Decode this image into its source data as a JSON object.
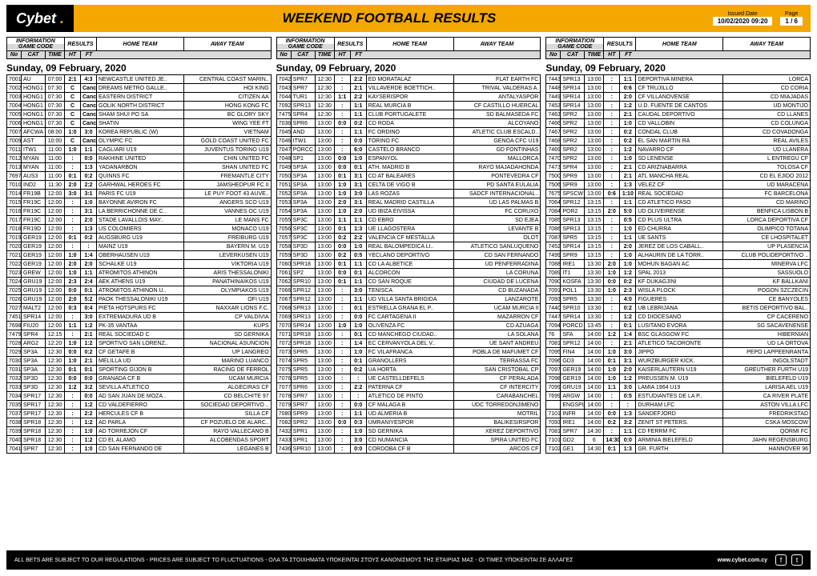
{
  "header": {
    "brand": "Cybet",
    "title": "WEEKEND FOOTBALL RESULTS",
    "issued_label": "Issued Date",
    "issued_value": "10/02/2020 09:20",
    "page_label": "Page",
    "page_value": "1 / 6"
  },
  "colhead": {
    "information": "INFORMATION",
    "gamecode": "GAME CODE",
    "results": "RESULTS",
    "home": "HOME TEAM",
    "away": "AWAY TEAM",
    "no": "No",
    "cat": "CAT",
    "time": "TIME",
    "ht": "HT",
    "ft": "FT"
  },
  "date": "Sunday, 09 February, 2020",
  "footer": {
    "disclaimer": "ALL BETS ARE SUBJECT TO OUR REGULATIONS - PRICES ARE SUBJECT TO FLUCTUATIONS - ΟΛΑ ΤΑ ΣΤΟΙΧΗΜΑΤΑ ΥΠΟΚΕΙΝΤΑΙ ΣΤΟΥΣ ΚΑΝΟΝΙΣΜΟΥΣ ΤΗΣ ΕΤΑΙΡΙΑΣ ΜΑΣ - ΟΙ ΤΙΜΕΣ ΥΠΟΚΕΙΝΤΑΙ ΣΕ ΑΛΛΑΓΕΣ",
    "url": "www.cybet.com.cy"
  },
  "columns": [
    [
      [
        "7001",
        "AU",
        "07:00",
        "2:1",
        "4:3",
        "NEWCASTLE UNITED JE..",
        "CENTRAL COAST MARIN.."
      ],
      [
        "7002",
        "HONG1",
        "07:30",
        "C",
        "Canc",
        "DREAMS METRO GALLE..",
        "HOI KING"
      ],
      [
        "7003",
        "HONG1",
        "07:30",
        "C",
        "Canc",
        "EASTERN DISTRICT",
        "CITIZEN AA"
      ],
      [
        "7004",
        "HONG1",
        "07:30",
        "C",
        "Canc",
        "GOLIK NORTH DISTRICT",
        "HONG KONG FC"
      ],
      [
        "7005",
        "HONG1",
        "07:30",
        "C",
        "Canc",
        "SHAM SHUI PO SA",
        "BC GLORY SKY"
      ],
      [
        "7006",
        "HONG1",
        "07:30",
        "C",
        "Canc",
        "SHATIN",
        "WING YEE FT"
      ],
      [
        "7007",
        "AFCWA",
        "08:00",
        "1:0",
        "3:0",
        "KOREA REPUBLIC (W)",
        "VIETNAM"
      ],
      [
        "7009",
        "AST",
        "10:00",
        "C",
        "Canc",
        "OLYMPIC FC",
        "GOLD COAST UNITED FC"
      ],
      [
        "7011",
        "ITW1",
        "11:00",
        "1:0",
        "1:1",
        "CAGLIARI U19",
        "JUVENTUS TORINO U19"
      ],
      [
        "7012",
        "MYAN",
        "11:00",
        ":",
        "0:0",
        "RAKHINE UNITED",
        "CHIN UNITED FC"
      ],
      [
        "7013",
        "MYAN",
        "11:00",
        ":",
        "1:3",
        "YADANARBON",
        "SHAN UNITED FC"
      ],
      [
        "7697",
        "AUS3",
        "11:00",
        "0:1",
        "0:2",
        "QUINNS FC",
        "FREMANTLE CITY"
      ],
      [
        "7010",
        "IND2",
        "11:30",
        "2:0",
        "2:2",
        "GARHWAL HEROES FC",
        "JAMSHEDPUR FC II"
      ],
      [
        "7014",
        "FR19B",
        "12:00",
        "3:0",
        "3:1",
        "PARIS FC U19",
        "LE PUY FOOT 43 AUVE.."
      ],
      [
        "7015",
        "FR19C",
        "12:00",
        ":",
        "1:0",
        "BAYONNE AVIRON FC",
        "ANGERS SCO U19"
      ],
      [
        "7016",
        "FR19C",
        "12:00",
        ":",
        "3:1",
        "LA BERRICHONNE DE C..",
        "VANNES OC U19"
      ],
      [
        "7017",
        "FR19C",
        "12:00",
        ":",
        "2:0",
        "STADE LAVALLOIS MAY..",
        "LE MANS FC"
      ],
      [
        "7018",
        "FR19D",
        "12:00",
        ":",
        "1:3",
        "US COLOMIERS",
        "MONACO U19"
      ],
      [
        "7019",
        "GER19",
        "12:00",
        "0:1",
        "0:2",
        "AUGSBURG U19",
        "FREIBURG U19"
      ],
      [
        "7020",
        "GER19",
        "12:00",
        ":",
        ":",
        "MAINZ U19",
        "BAYERN M. U19"
      ],
      [
        "7021",
        "GER19",
        "12:00",
        "1:0",
        "1:4",
        "OBERHAUSEN U19",
        "LEVERKUSEN U19"
      ],
      [
        "7022",
        "GER19",
        "12:00",
        "2:0",
        "2:0",
        "SCHALKE U19",
        "VIKTORIA U19"
      ],
      [
        "7023",
        "GREW",
        "12:00",
        "1:0",
        "1:1",
        "ATROMITOS ATHINON",
        "ARIS THESSALONIKI"
      ],
      [
        "7024",
        "GRU19",
        "12:00",
        "2:3",
        "2:4",
        "AEK ATHENS U19",
        "PANATHINAIKOS U19"
      ],
      [
        "7025",
        "GRU19",
        "12:00",
        "0:0",
        "0:1",
        "ATROMITOS ATHINON U..",
        "OLYMPIAKOS U19"
      ],
      [
        "7026",
        "GRU19",
        "12:00",
        "2:0",
        "5:2",
        "PAOK THESSALONIKI U19",
        "OFI U19"
      ],
      [
        "7027",
        "MALT2",
        "12:00",
        "0:3",
        "0:4",
        "PIETA HOTSPURS FC",
        "NAXXAR LIONS F.C."
      ],
      [
        "7451",
        "SPR14",
        "12:00",
        ":",
        "3:0",
        "EXTREMADURA UD B",
        "CP VALDIVIA"
      ],
      [
        "7698",
        "FIU20",
        "12:00",
        "1:1",
        "1:2",
        "PK-35 VANTAA",
        "KUPS"
      ],
      [
        "7479",
        "SPR4",
        "12:15",
        ":",
        "2:1",
        "REAL SOCIEDAD C",
        "SD GERNIKA"
      ],
      [
        "7028",
        "ARG2",
        "12:20",
        "1:0",
        "1:2",
        "SPORTIVO SAN LORENZ..",
        "NACIONAL ASUNCION"
      ],
      [
        "7029",
        "SP3A",
        "12:30",
        "0:0",
        "0:2",
        "CF GETAFE B",
        "UP LANGREO"
      ],
      [
        "7030",
        "SP3A",
        "12:30",
        "1:0",
        "2:1",
        "MELILLA UD",
        "MARINO LUANCO"
      ],
      [
        "7031",
        "SP3A",
        "12:30",
        "0:1",
        "0:1",
        "SPORTING GIJON B",
        "RACING DE FERROL"
      ],
      [
        "7032",
        "SP3D",
        "12:30",
        "0:0",
        "0:0",
        "GRANADA CF B",
        "UCAM MURCIA"
      ],
      [
        "7033",
        "SP3D",
        "12:30",
        "1:2",
        "3:2",
        "SEVILLA ATLETICO",
        "ALGECIRAS CF"
      ],
      [
        "7034",
        "SPR17",
        "12:30",
        ":",
        "0:0",
        "AD SAN JUAN DE MOZA..",
        "CD BELCHITE 97"
      ],
      [
        "7035",
        "SPR17",
        "12:30",
        ":",
        "1:2",
        "CD VALDEFIERRO",
        "SOCIEDAD DEPORTIVO .."
      ],
      [
        "7037",
        "SPR17",
        "12:30",
        ":",
        "2:2",
        "HERCULES CF B",
        "SILLA CF"
      ],
      [
        "7038",
        "SPR18",
        "12:30",
        ":",
        "1:2",
        "AD PARLA",
        "CF POZUELO DE ALARC.."
      ],
      [
        "7039",
        "SPR18",
        "12:30",
        ":",
        "1:0",
        "AD TORREJON CF",
        "RAYO VALLECANO B"
      ],
      [
        "7040",
        "SPR18",
        "12:30",
        ":",
        "1:2",
        "CD EL ALAMO",
        "ALCOBENDAS SPORT"
      ],
      [
        "7041",
        "SPR7",
        "12:30",
        ":",
        "1:0",
        "CD SAN FERNANDO DE",
        "LEGANES B"
      ]
    ],
    [
      [
        "7042",
        "SPR7",
        "12:30",
        ":",
        "2:2",
        "ED MORATALAZ",
        "FLAT EARTH FC"
      ],
      [
        "7043",
        "SPR7",
        "12:30",
        ":",
        "2:1",
        "VILLAVERDE BOETTICH..",
        "TRIVAL VALDERAS A."
      ],
      [
        "7044",
        "TUR1",
        "12:30",
        "1:1",
        "2:2",
        "KAYSERISPOR",
        "ANTALYASPOR"
      ],
      [
        "7092",
        "SPR13",
        "12:30",
        ":",
        "1:1",
        "REAL MURCIA B",
        "CF CASTILLO HUERCAL"
      ],
      [
        "7475",
        "SPR4",
        "12:30",
        ":",
        "1:1",
        "CLUB PORTUGALETE",
        "SD BALMASEDA FC"
      ],
      [
        "7036",
        "SPR6",
        "13:00",
        "0:0",
        "0:2",
        "CD RODA",
        "ALCOYANO"
      ],
      [
        "7045",
        "AND",
        "13:00",
        ":",
        "1:1",
        "FC ORDINO",
        "ATLETIC CLUB ESCALD.."
      ],
      [
        "7046",
        "ITW1",
        "13:00",
        ":",
        "0:0",
        "TORINO FC",
        "GENOA CFC U19"
      ],
      [
        "7047",
        "PORCC",
        "13:00",
        ":",
        "6:0",
        "CASTELO BRANCO",
        "GD FONTINHAS"
      ],
      [
        "7048",
        "SP1",
        "13:00",
        "0:0",
        "1:0",
        "ESPANYOL",
        "MALLORCA"
      ],
      [
        "7049",
        "SP3A",
        "13:00",
        "0:0",
        "0:1",
        "ATH. MADRID B",
        "RAYO MAJADAHONDA"
      ],
      [
        "7050",
        "SP3A",
        "13:00",
        "0:1",
        "3:1",
        "CD AT BALEARES",
        "PONTEVEDRA CF"
      ],
      [
        "7051",
        "SP3A",
        "13:00",
        "1:0",
        "3:1",
        "CELTA DE VIGO B",
        "PD SANTA EULALIA"
      ],
      [
        "7052",
        "SP3A",
        "13:00",
        "1:0",
        "3:0",
        "LAS ROZAS",
        "SADCF INTERNACIONAL.."
      ],
      [
        "7053",
        "SP3A",
        "13:00",
        "2:0",
        "3:1",
        "REAL MADRID CASTILLA",
        "UD LAS PALMAS B"
      ],
      [
        "7054",
        "SP3A",
        "13:00",
        "1:0",
        "2:0",
        "UD IBIZA EIVISSA",
        "FC CORUXO"
      ],
      [
        "7055",
        "SP3C",
        "13:00",
        "1:1",
        "1:1",
        "CD EBRO",
        "SD EJEA"
      ],
      [
        "7056",
        "SP3C",
        "13:00",
        "0:1",
        "1:3",
        "UE LLAGOSTERA",
        "LEVANTE B"
      ],
      [
        "7057",
        "SP3C",
        "13:00",
        "0:2",
        "2:2",
        "VALENCIA CF MESTALLA",
        "OLOT"
      ],
      [
        "7058",
        "SP3D",
        "13:00",
        "0:0",
        "1:0",
        "REAL BALOMPEDICA LI..",
        "ATLETICO SANLUQUENO"
      ],
      [
        "7059",
        "SP3D",
        "13:00",
        "0:2",
        "0:5",
        "YECLANO DEPORTIVO",
        "CD SAN FERNANDO"
      ],
      [
        "7060",
        "SPR18",
        "13:00",
        "0:1",
        "1:1",
        "CD LA ALBETICE",
        "UD PENFERRADINA"
      ],
      [
        "7061",
        "SP2",
        "13:00",
        "0:0",
        "0:1",
        "ALCORCON",
        "LA CORUNA"
      ],
      [
        "7062",
        "SPR10",
        "13:00",
        "0:1",
        "1:1",
        "CD SAN ROQUE",
        "CIUDAD DE LUCENA"
      ],
      [
        "7066",
        "SPR12",
        "13:00",
        ":",
        "3:0",
        "TENISCA",
        "CD BUZANADA"
      ],
      [
        "7067",
        "SPR12",
        "13:00",
        ":",
        "1:1",
        "UD VILLA SANTA BRIGIDA",
        "LANZAROTE"
      ],
      [
        "7068",
        "SPR13",
        "13:00",
        ":",
        "0:1",
        "ESTRELLA GRANA EL P..",
        "UCAM MURCIA II"
      ],
      [
        "7069",
        "SPR13",
        "13:00",
        ":",
        "0:0",
        "FC CARTAGENA II",
        "MAZARRON CF"
      ],
      [
        "7070",
        "SPR14",
        "13:00",
        "1:0",
        "1:0",
        "OLIVENZA FC",
        "CD AZUAGA"
      ],
      [
        "7071",
        "SPR18",
        "13:00",
        ":",
        "0:1",
        "CD MANCHEGO CIUDAD..",
        "LA SOLANA"
      ],
      [
        "7072",
        "SPR18",
        "13:00",
        ":",
        "1:4",
        "EC CERVANYOLA DEL V..",
        "UE SANT ANDREU"
      ],
      [
        "7073",
        "SPR5",
        "13:00",
        ":",
        "1:0",
        "FC VILAFRANCA",
        "POBLA DE MAFUMET CF"
      ],
      [
        "7074",
        "SPR5",
        "13:00",
        ":",
        "0:1",
        "GRANOLLERS",
        "TERRASSA FC"
      ],
      [
        "7075",
        "SPR5",
        "13:00",
        ":",
        "0:2",
        "UA HORTA",
        "SAN CRISTOBAL CP"
      ],
      [
        "7076",
        "SPR5",
        "13:00",
        ":",
        ":",
        "UE CASTELLDEFELS",
        "CF PERALADA"
      ],
      [
        "7077",
        "SPR6",
        "13:00",
        ":",
        "2:2",
        "PATERNA CF",
        "CF INTERCITY"
      ],
      [
        "7078",
        "SPR7",
        "13:00",
        ":",
        ":",
        "ATLETICO DE PINTO",
        "CARABANCHEL"
      ],
      [
        "7079",
        "SPR7",
        "13:00",
        ":",
        "0:0",
        "CF MALAGA B",
        "UDC TORREDONJIMENO"
      ],
      [
        "7080",
        "SPR9",
        "13:00",
        ":",
        "1:1",
        "UD ALMERIA B",
        "MOTRIL"
      ],
      [
        "7082",
        "SPR2",
        "13:00",
        "0:0",
        "0:3",
        "UMRANIYESPOR",
        "BALIKESIRSPOR"
      ],
      [
        "7432",
        "SPR1",
        "13:00",
        ":",
        "1:0",
        "SD GERNIKA",
        "XEREZ DEPORTIVO"
      ],
      [
        "7433",
        "SPR1",
        "13:00",
        ":",
        "3:0",
        "CD NUMANCIA",
        "SPIRA UNITED FC"
      ],
      [
        "7436",
        "SPR10",
        "13:00",
        ":",
        "0:0",
        "CORDOBA CF B",
        "ARCOS CF"
      ]
    ],
    [
      [
        "7443",
        "SPR13",
        "13:00",
        ":",
        "1:1",
        "DEPORTIVA MINERA",
        "LORCA"
      ],
      [
        "7448",
        "SPR14",
        "13:00",
        ":",
        "0:6",
        "CF TRUJILLO",
        "CD CORIA"
      ],
      [
        "7449",
        "SPR14",
        "13:00",
        ":",
        "2:0",
        "CF VILLANOVENSE",
        "CD MIAJADAS"
      ],
      [
        "7453",
        "SPR14",
        "13:00",
        ":",
        "1:2",
        "U.D. FUENTE DE CANTOS",
        "UD MONTIJO"
      ],
      [
        "7463",
        "SPR2",
        "13:00",
        ":",
        "2:1",
        "CAUDAL DEPORTIVO",
        "CD LLANES"
      ],
      [
        "7466",
        "SPR2",
        "13:00",
        ":",
        "1:0",
        "CD VALLOBIN",
        "CD COLUNGA"
      ],
      [
        "7467",
        "SPR2",
        "13:00",
        ":",
        "0:2",
        "CONDAL CLUB",
        "CD COVADONGA"
      ],
      [
        "7468",
        "SPR2",
        "13:00",
        ":",
        "0:2",
        "EL SAN MARTIN RA",
        "REAL AVILES"
      ],
      [
        "7469",
        "SPR2",
        "13:00",
        ":",
        "1:2",
        "NAVARRO CF",
        "UD LLANERA"
      ],
      [
        "7470",
        "SPR2",
        "13:00",
        ":",
        "1:0",
        "SD LENENSE",
        "L ENTREGU CF"
      ],
      [
        "7473",
        "SPR4",
        "13:00",
        ":",
        "2:1",
        "CD ARIZNABARRA",
        "TOLOSA CF"
      ],
      [
        "7500",
        "SPR9",
        "13:00",
        ":",
        "2:1",
        "ATL MANCHA REAL",
        "CD EL EJIDO 2012"
      ],
      [
        "7506",
        "SPR9",
        "13:00",
        ":",
        "1:3",
        "VELEZ CF",
        "UD MARACENA"
      ],
      [
        "7675",
        "SPSCW",
        "13:00",
        "0:6",
        "1:10",
        "REAL SOCIEDAD",
        "FC BARCELONA"
      ],
      [
        "7064",
        "SPR12",
        "13:15",
        ":",
        "1:1",
        "CD ATLETICO PASO",
        "CD MARINO"
      ],
      [
        "7084",
        "POR2",
        "13:15",
        "2:0",
        "5:0",
        "UD OLIVEIRENSE",
        "BENFICA LISBON B"
      ],
      [
        "7085",
        "SPR13",
        "13:15",
        ":",
        "0:5",
        "CD PLUS ULTRA",
        "LORCA DEPORTIVA CF"
      ],
      [
        "7086",
        "SPR13",
        "13:15",
        ":",
        "1:0",
        "ED CHURRA",
        "OLIMPICO TOTANA"
      ],
      [
        "7087",
        "SPR5",
        "13:15",
        ":",
        "1:1",
        "UE SANTS",
        "CE LHOSPITALET"
      ],
      [
        "7452",
        "SPR14",
        "13:15",
        ":",
        "2:0",
        "JEREZ DE LOS CABALL..",
        "UP PLASENCIA"
      ],
      [
        "7499",
        "SPR9",
        "13:15",
        ":",
        "1:0",
        "ALHAURIN DE LA TORR..",
        "CLUB POLIDEPORTIVO .."
      ],
      [
        "7088",
        "IRE1",
        "13:30",
        "2:0",
        "1:0",
        "MOHUN BAGAN AC",
        "MINERVA LFC"
      ],
      [
        "7089",
        "IT1",
        "13:30",
        "1:0",
        "1:2",
        "SPAL 2013",
        "SASSUOLO"
      ],
      [
        "7090",
        "KOSFA",
        "13:30",
        "0:0",
        "0:2",
        "KF DUKAGJINI",
        "KF BALLKANI"
      ],
      [
        "7091",
        "POL1",
        "13:30",
        "1:0",
        "2:3",
        "WISLA PLOCK",
        "POGON SZCZECIN"
      ],
      [
        "7093",
        "SPR5",
        "13:30",
        ":",
        "4:0",
        "FIGUERES",
        "CE BANYOLES"
      ],
      [
        "7440",
        "SPR10",
        "13:30",
        ":",
        "0:2",
        "UB LEBRIJANA",
        "BETIS DEPORTIVO BAL.."
      ],
      [
        "7447",
        "SPR14",
        "13:30",
        ":",
        "1:2",
        "CD DIOCESANO",
        "CP CACERENO"
      ],
      [
        "7094",
        "PORCD",
        "13:45",
        ":",
        "0:1",
        "LUSITANO EVORA",
        "SG SACAVENENSE"
      ],
      [
        "76",
        "SFA",
        "14:00",
        "1:2",
        "1:4",
        "BSC GLASGOW FC",
        "HIBERNIAN"
      ],
      [
        "7081",
        "SPR12",
        "14:00",
        ":",
        "2:1",
        "ATLETICO TACORONTE",
        "UD LA ORTOVA"
      ],
      [
        "7095",
        "FIN4",
        "14:00",
        "1:0",
        "3:0",
        "JIPPO",
        "PEPO LAPPEENRANTA"
      ],
      [
        "7096",
        "GD3",
        "14:00",
        "0:1",
        "3:1",
        "WURZBURGER KICK.",
        "INGOLSTADT"
      ],
      [
        "7097",
        "GER19",
        "14:00",
        "1:0",
        "2:0",
        "KAISERLAUTERN U19",
        "GREUTHER FURTH U19"
      ],
      [
        "7098",
        "GER19",
        "14:00",
        "1:0",
        "1:2",
        "PREUSSEN M. U19",
        "BIELEFELD U19"
      ],
      [
        "7099",
        "GRU19",
        "14:00",
        "1:1",
        "3:0",
        "LAMIA 1964 U19",
        "LARISA AEL U19"
      ],
      [
        "7699",
        "ARGW",
        "14:00",
        ":",
        "0:5",
        "ESTUDIANTES DE LA P..",
        "CA RIVER PLATE"
      ],
      [
        "",
        "ENGSPL",
        "14:00",
        ":",
        ":",
        "DURHAM LFC",
        "ASTON VILLA LFC"
      ],
      [
        "7101",
        "INFR",
        "14:00",
        "0:0",
        "1:3",
        "SANDEFJORD",
        "FREDRIKSTAD"
      ],
      [
        "7093",
        "IRE1",
        "14:00",
        "0:2",
        "3:2",
        "ZENIT ST PETERS.",
        "CSKA MOSCOW"
      ],
      [
        "7081",
        "SPR7",
        "14:30",
        ":",
        "1:1",
        "CD FERRM FC",
        "QORMI FC"
      ],
      [
        "7101",
        "GD2",
        "6",
        "14:30",
        "0:0",
        "ARMINIA BIELEFELD",
        "JAHN REGENSBURG"
      ],
      [
        "7102",
        "GE1",
        "14:30",
        "0:1",
        "1:3",
        "GR. FURTH",
        "HANNOVER 96"
      ]
    ]
  ]
}
